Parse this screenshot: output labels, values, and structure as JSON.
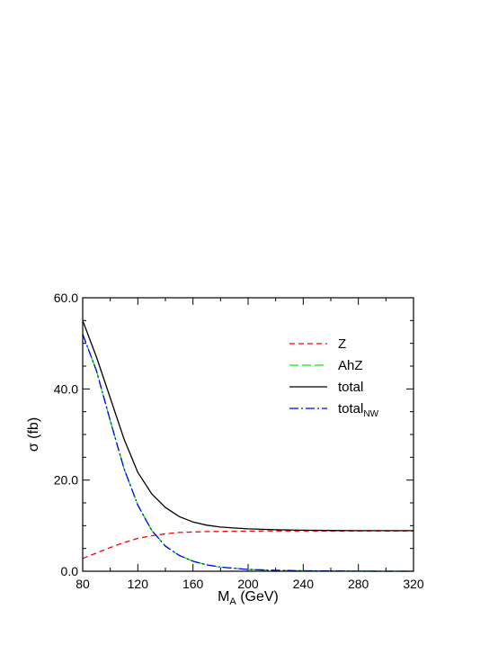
{
  "chart_data": {
    "type": "line",
    "xlabel": {
      "main": "M",
      "sub": "A",
      "rest": " (GeV)"
    },
    "ylabel": "σ (fb)",
    "xlim": [
      80,
      320
    ],
    "ylim": [
      0,
      60
    ],
    "xticks": [
      "80",
      "120",
      "160",
      "200",
      "240",
      "280",
      "320"
    ],
    "yticks": [
      "0.0",
      "20.0",
      "40.0",
      "60.0"
    ],
    "legend_position": "top-right",
    "grid": false,
    "series": [
      {
        "key": "z",
        "name": "Z",
        "name_sub": "",
        "color": "#ff0000",
        "dash": "6,4",
        "x": [
          80,
          90,
          100,
          110,
          120,
          130,
          140,
          150,
          160,
          170,
          180,
          200,
          220,
          240,
          260,
          280,
          300,
          320
        ],
        "y": [
          2.8,
          4.0,
          5.2,
          6.3,
          7.2,
          7.8,
          8.2,
          8.5,
          8.6,
          8.7,
          8.75,
          8.8,
          8.85,
          8.85,
          8.85,
          8.85,
          8.85,
          8.85
        ]
      },
      {
        "key": "ahz",
        "name": "AhZ",
        "name_sub": "",
        "color": "#00ee00",
        "dash": "10,4",
        "x": [
          80,
          90,
          100,
          110,
          120,
          130,
          140,
          150,
          160,
          170,
          180,
          200,
          220,
          240,
          260,
          280,
          300,
          320
        ],
        "y": [
          52.0,
          44.0,
          33.0,
          22.5,
          14.5,
          9.0,
          5.5,
          3.5,
          2.2,
          1.4,
          0.9,
          0.4,
          0.2,
          0.1,
          0.05,
          0.02,
          0.0,
          0.0
        ]
      },
      {
        "key": "total",
        "name": "total",
        "name_sub": "",
        "color": "#000000",
        "dash": "",
        "x": [
          80,
          90,
          100,
          110,
          120,
          130,
          140,
          150,
          160,
          170,
          180,
          200,
          220,
          240,
          260,
          280,
          300,
          320
        ],
        "y": [
          55.0,
          47.0,
          38.0,
          29.0,
          21.7,
          17.0,
          14.0,
          12.0,
          10.8,
          10.1,
          9.7,
          9.3,
          9.1,
          9.0,
          8.95,
          8.9,
          8.9,
          8.9
        ]
      },
      {
        "key": "total_nw",
        "name": "total",
        "name_sub": "NW",
        "color": "#0000ff",
        "dash": "10,3,2,3",
        "x": [
          80,
          90,
          100,
          110,
          120,
          130,
          140,
          150,
          160,
          170,
          180,
          200,
          220,
          240,
          260,
          280,
          300,
          320
        ],
        "y": [
          52.0,
          44.0,
          33.0,
          22.5,
          14.5,
          9.0,
          5.5,
          3.5,
          2.2,
          1.4,
          0.9,
          0.4,
          0.2,
          0.1,
          0.05,
          0.02,
          0.0,
          0.0
        ]
      }
    ]
  }
}
